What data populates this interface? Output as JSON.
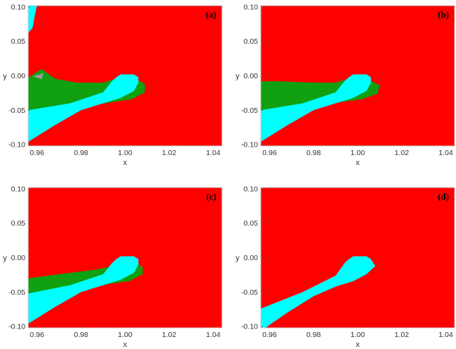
{
  "colors": {
    "red": "#ff0000",
    "green": "#10a010",
    "cyan": "#00ffff",
    "gray": "#9a9a9a",
    "frame": "#c8c8c8"
  },
  "chart_data": [
    {
      "type": "heatmap",
      "panel_label": "(a)",
      "xlabel": "x",
      "ylabel": "y",
      "xlim": [
        0.956,
        1.044
      ],
      "ylim": [
        -0.102,
        0.102
      ],
      "x_ticks": [
        "0.96",
        "0.98",
        "1.00",
        "1.02",
        "1.04"
      ],
      "y_ticks": [
        "0.10",
        "0.05",
        "0.00",
        "-0.05",
        "-0.10"
      ],
      "background_region": "red",
      "regions": [
        {
          "color": "green",
          "points": [
            [
              0.956,
              -0.003
            ],
            [
              0.962,
              0.01
            ],
            [
              0.968,
              -0.004
            ],
            [
              0.978,
              -0.01
            ],
            [
              0.99,
              -0.01
            ],
            [
              0.996,
              -0.004
            ],
            [
              1.004,
              -0.003
            ],
            [
              1.009,
              -0.012
            ],
            [
              1.009,
              -0.024
            ],
            [
              1.003,
              -0.034
            ],
            [
              0.995,
              -0.038
            ],
            [
              0.985,
              -0.043
            ],
            [
              0.97,
              -0.048
            ],
            [
              0.956,
              -0.051
            ]
          ]
        },
        {
          "color": "gray",
          "points": [
            [
              0.958,
              -0.001
            ],
            [
              0.963,
              0.004
            ],
            [
              0.962,
              -0.005
            ]
          ]
        },
        {
          "color": "cyan",
          "points": [
            [
              0.956,
              0.102
            ],
            [
              0.96,
              0.102
            ],
            [
              0.959,
              0.088
            ],
            [
              0.958,
              0.07
            ],
            [
              0.956,
              0.062
            ]
          ]
        },
        {
          "color": "cyan",
          "points": [
            [
              0.956,
              -0.05
            ],
            [
              0.975,
              -0.04
            ],
            [
              0.99,
              -0.024
            ],
            [
              0.994,
              -0.008
            ],
            [
              0.996,
              -0.002
            ],
            [
              0.998,
              0.002
            ],
            [
              1.004,
              0.002
            ],
            [
              1.006,
              -0.002
            ],
            [
              1.006,
              -0.01
            ],
            [
              1.004,
              -0.022
            ],
            [
              0.998,
              -0.032
            ],
            [
              0.99,
              -0.04
            ],
            [
              0.98,
              -0.05
            ],
            [
              0.968,
              -0.072
            ],
            [
              0.956,
              -0.096
            ]
          ]
        }
      ]
    },
    {
      "type": "heatmap",
      "panel_label": "(b)",
      "xlabel": "x",
      "ylabel": "y",
      "xlim": [
        0.956,
        1.044
      ],
      "ylim": [
        -0.102,
        0.102
      ],
      "x_ticks": [
        "0.96",
        "0.98",
        "1.00",
        "1.02",
        "1.04"
      ],
      "y_ticks": [
        "0.10",
        "0.05",
        "0.00",
        "-0.05",
        "-0.10"
      ],
      "background_region": "red",
      "regions": [
        {
          "color": "green",
          "points": [
            [
              0.956,
              -0.008
            ],
            [
              0.965,
              -0.008
            ],
            [
              0.98,
              -0.01
            ],
            [
              0.99,
              -0.01
            ],
            [
              0.996,
              -0.004
            ],
            [
              1.004,
              -0.004
            ],
            [
              1.01,
              -0.014
            ],
            [
              1.009,
              -0.026
            ],
            [
              1.002,
              -0.034
            ],
            [
              0.993,
              -0.038
            ],
            [
              0.98,
              -0.044
            ],
            [
              0.966,
              -0.048
            ],
            [
              0.956,
              -0.051
            ]
          ]
        },
        {
          "color": "cyan",
          "points": [
            [
              0.956,
              -0.05
            ],
            [
              0.975,
              -0.04
            ],
            [
              0.99,
              -0.024
            ],
            [
              0.994,
              -0.008
            ],
            [
              0.996,
              -0.002
            ],
            [
              0.998,
              0.002
            ],
            [
              1.004,
              0.002
            ],
            [
              1.006,
              -0.002
            ],
            [
              1.006,
              -0.01
            ],
            [
              1.004,
              -0.022
            ],
            [
              0.998,
              -0.032
            ],
            [
              0.99,
              -0.04
            ],
            [
              0.98,
              -0.05
            ],
            [
              0.968,
              -0.072
            ],
            [
              0.956,
              -0.096
            ]
          ]
        }
      ]
    },
    {
      "type": "heatmap",
      "panel_label": "(c)",
      "xlabel": "x",
      "ylabel": "y",
      "xlim": [
        0.956,
        1.044
      ],
      "ylim": [
        -0.102,
        0.102
      ],
      "x_ticks": [
        "0.96",
        "0.98",
        "1.00",
        "1.02",
        "1.04"
      ],
      "y_ticks": [
        "0.10",
        "0.05",
        "0.00",
        "-0.05",
        "-0.10"
      ],
      "background_region": "red",
      "regions": [
        {
          "color": "green",
          "points": [
            [
              0.956,
              -0.03
            ],
            [
              0.97,
              -0.024
            ],
            [
              0.985,
              -0.018
            ],
            [
              0.996,
              -0.012
            ],
            [
              1.004,
              -0.004
            ],
            [
              1.008,
              -0.014
            ],
            [
              1.008,
              -0.024
            ],
            [
              1.002,
              -0.034
            ],
            [
              0.993,
              -0.038
            ],
            [
              0.98,
              -0.045
            ],
            [
              0.966,
              -0.05
            ],
            [
              0.956,
              -0.052
            ]
          ]
        },
        {
          "color": "cyan",
          "points": [
            [
              0.956,
              -0.052
            ],
            [
              0.975,
              -0.04
            ],
            [
              0.99,
              -0.024
            ],
            [
              0.994,
              -0.008
            ],
            [
              0.996,
              -0.002
            ],
            [
              0.998,
              0.002
            ],
            [
              1.004,
              0.002
            ],
            [
              1.006,
              -0.002
            ],
            [
              1.006,
              -0.01
            ],
            [
              1.004,
              -0.022
            ],
            [
              0.998,
              -0.032
            ],
            [
              0.99,
              -0.04
            ],
            [
              0.98,
              -0.05
            ],
            [
              0.968,
              -0.072
            ],
            [
              0.956,
              -0.096
            ]
          ]
        }
      ]
    },
    {
      "type": "heatmap",
      "panel_label": "(d)",
      "xlabel": "x",
      "ylabel": "y",
      "xlim": [
        0.956,
        1.044
      ],
      "ylim": [
        -0.102,
        0.102
      ],
      "x_ticks": [
        "0.96",
        "0.98",
        "1.00",
        "1.02",
        "1.04"
      ],
      "y_ticks": [
        "0.10",
        "0.05",
        "0.00",
        "-0.05",
        "-0.10"
      ],
      "background_region": "red",
      "regions": [
        {
          "color": "cyan",
          "points": [
            [
              0.956,
              -0.074
            ],
            [
              0.975,
              -0.05
            ],
            [
              0.99,
              -0.026
            ],
            [
              0.994,
              -0.008
            ],
            [
              0.996,
              -0.002
            ],
            [
              0.998,
              0.002
            ],
            [
              1.004,
              0.002
            ],
            [
              1.006,
              -0.002
            ],
            [
              1.008,
              -0.012
            ],
            [
              1.004,
              -0.024
            ],
            [
              0.998,
              -0.034
            ],
            [
              0.99,
              -0.042
            ],
            [
              0.98,
              -0.056
            ],
            [
              0.968,
              -0.08
            ],
            [
              0.958,
              -0.102
            ],
            [
              0.956,
              -0.102
            ]
          ]
        }
      ]
    }
  ]
}
